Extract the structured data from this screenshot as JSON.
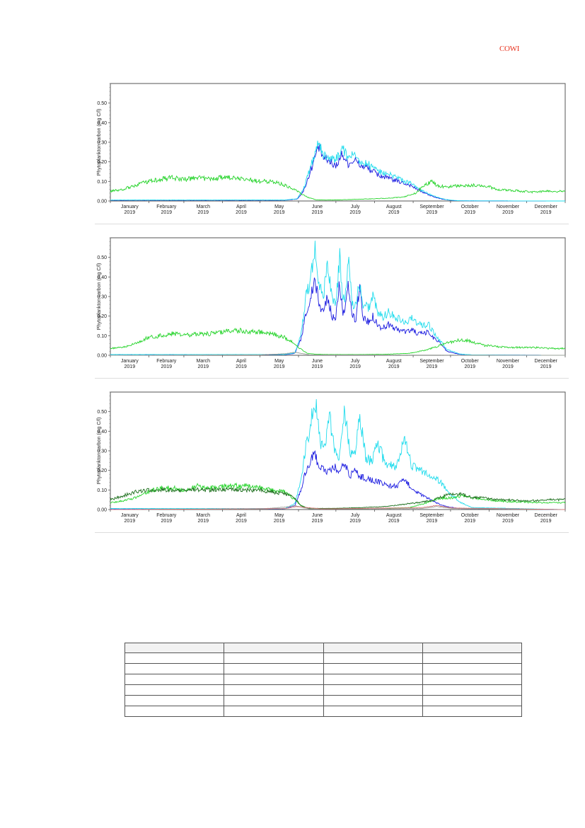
{
  "header": {
    "logo_text": "COWI"
  },
  "chart_data": [
    {
      "type": "line",
      "ylabel": "Phytoplankton carbon (mg C/l)",
      "ylim": [
        0,
        0.6
      ],
      "yticks": [
        "0.00",
        "0.10",
        "0.20",
        "0.30",
        "0.40",
        "0.50"
      ],
      "ytick_values": [
        0,
        0.1,
        0.2,
        0.3,
        0.4,
        0.5
      ],
      "x_months": [
        "January",
        "February",
        "March",
        "April",
        "May",
        "June",
        "July",
        "August",
        "September",
        "October",
        "November",
        "December"
      ],
      "x_year": "2019",
      "xlim": [
        0,
        365
      ],
      "grid": false,
      "series": [
        {
          "color": "#1c1ce0",
          "x": [
            0,
            140,
            150,
            155,
            160,
            163,
            167,
            171,
            176,
            181,
            186,
            191,
            196,
            201,
            206,
            211,
            216,
            221,
            226,
            231,
            236,
            241,
            246,
            251,
            256,
            261,
            266,
            271,
            276,
            281,
            365
          ],
          "values": [
            0.004,
            0.004,
            0.01,
            0.05,
            0.14,
            0.2,
            0.28,
            0.22,
            0.2,
            0.18,
            0.24,
            0.19,
            0.21,
            0.18,
            0.17,
            0.15,
            0.13,
            0.12,
            0.11,
            0.1,
            0.09,
            0.08,
            0.06,
            0.045,
            0.03,
            0.018,
            0.01,
            0.005,
            0.002,
            0.001,
            0.0
          ]
        },
        {
          "color": "#22dced",
          "x": [
            0,
            140,
            150,
            155,
            160,
            163,
            167,
            171,
            176,
            181,
            186,
            191,
            196,
            201,
            206,
            211,
            216,
            221,
            226,
            231,
            236,
            241,
            246,
            251,
            256,
            261,
            266,
            271,
            276,
            281,
            365
          ],
          "values": [
            0.005,
            0.005,
            0.012,
            0.06,
            0.16,
            0.22,
            0.31,
            0.24,
            0.22,
            0.21,
            0.27,
            0.22,
            0.24,
            0.2,
            0.19,
            0.17,
            0.15,
            0.14,
            0.13,
            0.12,
            0.1,
            0.09,
            0.07,
            0.05,
            0.035,
            0.022,
            0.012,
            0.006,
            0.003,
            0.001,
            0.0
          ]
        },
        {
          "color": "#27d42c",
          "x": [
            0,
            10,
            20,
            30,
            40,
            50,
            60,
            70,
            80,
            90,
            100,
            110,
            120,
            130,
            140,
            150,
            155,
            160,
            165,
            175,
            185,
            195,
            205,
            215,
            225,
            235,
            245,
            252,
            258,
            262,
            270,
            280,
            290,
            300,
            310,
            320,
            330,
            340,
            350,
            365
          ],
          "values": [
            0.05,
            0.06,
            0.08,
            0.1,
            0.11,
            0.12,
            0.11,
            0.12,
            0.11,
            0.12,
            0.12,
            0.11,
            0.1,
            0.1,
            0.08,
            0.05,
            0.03,
            0.015,
            0.006,
            0.005,
            0.006,
            0.008,
            0.01,
            0.012,
            0.015,
            0.02,
            0.04,
            0.08,
            0.1,
            0.08,
            0.07,
            0.08,
            0.08,
            0.08,
            0.06,
            0.055,
            0.05,
            0.045,
            0.05,
            0.05
          ]
        }
      ]
    },
    {
      "type": "line",
      "ylabel": "Phytoplankton carbon (mg C/l)",
      "ylim": [
        0,
        0.6
      ],
      "yticks": [
        "0.00",
        "0.10",
        "0.20",
        "0.30",
        "0.40",
        "0.50"
      ],
      "ytick_values": [
        0,
        0.1,
        0.2,
        0.3,
        0.4,
        0.5
      ],
      "x_months": [
        "January",
        "February",
        "March",
        "April",
        "May",
        "June",
        "July",
        "August",
        "September",
        "October",
        "November",
        "December"
      ],
      "x_year": "2019",
      "xlim": [
        0,
        365
      ],
      "grid": false,
      "series": [
        {
          "color": "#1c1ce0",
          "x": [
            0,
            140,
            148,
            153,
            157,
            161,
            164,
            168,
            171,
            174,
            178,
            181,
            184,
            186,
            188,
            191,
            194,
            197,
            200,
            203,
            207,
            211,
            215,
            219,
            223,
            227,
            232,
            237,
            242,
            247,
            252,
            255,
            259,
            264,
            270,
            280,
            290,
            365
          ],
          "values": [
            0.003,
            0.003,
            0.01,
            0.08,
            0.22,
            0.3,
            0.38,
            0.25,
            0.22,
            0.3,
            0.2,
            0.19,
            0.38,
            0.24,
            0.2,
            0.36,
            0.2,
            0.18,
            0.35,
            0.19,
            0.17,
            0.2,
            0.15,
            0.14,
            0.16,
            0.14,
            0.13,
            0.12,
            0.13,
            0.11,
            0.11,
            0.12,
            0.09,
            0.07,
            0.02,
            0.005,
            0.002,
            0.0
          ]
        },
        {
          "color": "#22dced",
          "x": [
            0,
            140,
            148,
            153,
            157,
            161,
            164,
            168,
            171,
            174,
            178,
            181,
            184,
            186,
            188,
            191,
            194,
            197,
            200,
            203,
            207,
            211,
            215,
            219,
            223,
            227,
            232,
            237,
            242,
            247,
            252,
            255,
            259,
            264,
            270,
            280,
            290,
            365
          ],
          "values": [
            0.004,
            0.004,
            0.012,
            0.1,
            0.3,
            0.4,
            0.56,
            0.35,
            0.3,
            0.48,
            0.28,
            0.27,
            0.5,
            0.33,
            0.28,
            0.5,
            0.27,
            0.25,
            0.37,
            0.26,
            0.24,
            0.3,
            0.21,
            0.2,
            0.22,
            0.2,
            0.19,
            0.17,
            0.19,
            0.16,
            0.15,
            0.16,
            0.12,
            0.08,
            0.03,
            0.007,
            0.002,
            0.0
          ]
        },
        {
          "color": "#27d42c",
          "x": [
            0,
            10,
            20,
            30,
            40,
            50,
            60,
            70,
            80,
            90,
            100,
            110,
            120,
            130,
            140,
            148,
            153,
            158,
            165,
            180,
            200,
            220,
            240,
            252,
            260,
            268,
            275,
            282,
            290,
            300,
            310,
            320,
            330,
            340,
            350,
            365
          ],
          "values": [
            0.035,
            0.04,
            0.06,
            0.09,
            0.1,
            0.11,
            0.1,
            0.11,
            0.11,
            0.12,
            0.13,
            0.12,
            0.12,
            0.11,
            0.09,
            0.06,
            0.03,
            0.01,
            0.005,
            0.004,
            0.004,
            0.005,
            0.01,
            0.025,
            0.04,
            0.06,
            0.07,
            0.08,
            0.07,
            0.05,
            0.045,
            0.04,
            0.04,
            0.04,
            0.035,
            0.035
          ]
        },
        {
          "color": "#9aa09a",
          "x": [
            0,
            120,
            140,
            148,
            153,
            160,
            365
          ],
          "values": [
            0.0,
            0.002,
            0.008,
            0.015,
            0.01,
            0.002,
            0.0
          ]
        }
      ]
    },
    {
      "type": "line",
      "ylabel": "Phytoplankton carbon (mg C/l)",
      "ylim": [
        0,
        0.6
      ],
      "yticks": [
        "0.00",
        "0.10",
        "0.20",
        "0.30",
        "0.40",
        "0.50"
      ],
      "ytick_values": [
        0,
        0.1,
        0.2,
        0.3,
        0.4,
        0.5
      ],
      "x_months": [
        "January",
        "February",
        "March",
        "April",
        "May",
        "June",
        "July",
        "August",
        "September",
        "October",
        "November",
        "December"
      ],
      "x_year": "2019",
      "xlim": [
        0,
        365
      ],
      "grid": false,
      "series": [
        {
          "color": "#1c1ce0",
          "x": [
            0,
            140,
            148,
            153,
            157,
            161,
            164,
            168,
            172,
            176,
            180,
            184,
            188,
            192,
            196,
            200,
            205,
            210,
            215,
            220,
            225,
            230,
            236,
            242,
            248,
            254,
            260,
            265,
            270,
            280,
            365
          ],
          "values": [
            0.004,
            0.004,
            0.02,
            0.1,
            0.2,
            0.25,
            0.28,
            0.22,
            0.2,
            0.19,
            0.22,
            0.18,
            0.24,
            0.17,
            0.2,
            0.17,
            0.16,
            0.15,
            0.14,
            0.13,
            0.12,
            0.12,
            0.15,
            0.11,
            0.08,
            0.06,
            0.04,
            0.025,
            0.015,
            0.005,
            0.0
          ]
        },
        {
          "color": "#22dced",
          "x": [
            0,
            140,
            148,
            153,
            157,
            161,
            164,
            168,
            172,
            176,
            180,
            184,
            188,
            192,
            196,
            200,
            205,
            210,
            215,
            220,
            225,
            230,
            236,
            242,
            248,
            254,
            260,
            265,
            270,
            280,
            290,
            365
          ],
          "values": [
            0.005,
            0.005,
            0.03,
            0.15,
            0.32,
            0.45,
            0.58,
            0.36,
            0.3,
            0.48,
            0.29,
            0.28,
            0.5,
            0.3,
            0.27,
            0.48,
            0.26,
            0.25,
            0.34,
            0.24,
            0.23,
            0.22,
            0.36,
            0.22,
            0.2,
            0.18,
            0.16,
            0.14,
            0.1,
            0.04,
            0.01,
            0.0
          ]
        },
        {
          "color": "#27d42c",
          "x": [
            0,
            10,
            20,
            30,
            40,
            50,
            60,
            70,
            80,
            90,
            100,
            110,
            120,
            130,
            140,
            148,
            153,
            158,
            165,
            180,
            200,
            220,
            240,
            252,
            260,
            268,
            275,
            282,
            290,
            300,
            310,
            320,
            330,
            340,
            350,
            365
          ],
          "values": [
            0.035,
            0.045,
            0.06,
            0.09,
            0.11,
            0.11,
            0.1,
            0.12,
            0.11,
            0.12,
            0.12,
            0.12,
            0.11,
            0.1,
            0.09,
            0.05,
            0.02,
            0.008,
            0.004,
            0.003,
            0.004,
            0.006,
            0.01,
            0.03,
            0.05,
            0.06,
            0.06,
            0.07,
            0.06,
            0.05,
            0.045,
            0.04,
            0.04,
            0.035,
            0.035,
            0.035
          ]
        },
        {
          "color": "#1b6e1b",
          "x": [
            0,
            10,
            20,
            30,
            40,
            50,
            60,
            70,
            80,
            90,
            100,
            110,
            120,
            130,
            140,
            148,
            153,
            158,
            165,
            180,
            200,
            220,
            240,
            252,
            260,
            268,
            275,
            282,
            290,
            300,
            310,
            320,
            330,
            340,
            350,
            365
          ],
          "values": [
            0.05,
            0.07,
            0.09,
            0.1,
            0.1,
            0.1,
            0.1,
            0.1,
            0.1,
            0.1,
            0.1,
            0.1,
            0.1,
            0.09,
            0.08,
            0.06,
            0.02,
            0.008,
            0.006,
            0.006,
            0.01,
            0.015,
            0.03,
            0.04,
            0.05,
            0.07,
            0.08,
            0.08,
            0.06,
            0.06,
            0.05,
            0.05,
            0.045,
            0.045,
            0.05,
            0.05
          ]
        },
        {
          "color": "#9aa09a",
          "x": [
            0,
            120,
            140,
            148,
            153,
            160,
            250,
            262,
            275,
            365
          ],
          "values": [
            0.0,
            0.003,
            0.012,
            0.02,
            0.012,
            0.003,
            0.005,
            0.015,
            0.005,
            0.0
          ]
        },
        {
          "color": "#d87a7a",
          "x": [
            0,
            140,
            150,
            158,
            170,
            250,
            262,
            275,
            365
          ],
          "values": [
            0.0,
            0.005,
            0.015,
            0.01,
            0.003,
            0.01,
            0.02,
            0.008,
            0.0
          ]
        }
      ]
    }
  ],
  "table": {
    "header": [
      "",
      "",
      "",
      ""
    ],
    "rows": [
      [
        "",
        "",
        "",
        ""
      ],
      [
        "",
        "",
        "",
        ""
      ],
      [
        "",
        "",
        "",
        ""
      ],
      [
        "",
        "",
        "",
        ""
      ],
      [
        "",
        "",
        "",
        ""
      ],
      [
        "",
        "",
        "",
        ""
      ]
    ]
  }
}
